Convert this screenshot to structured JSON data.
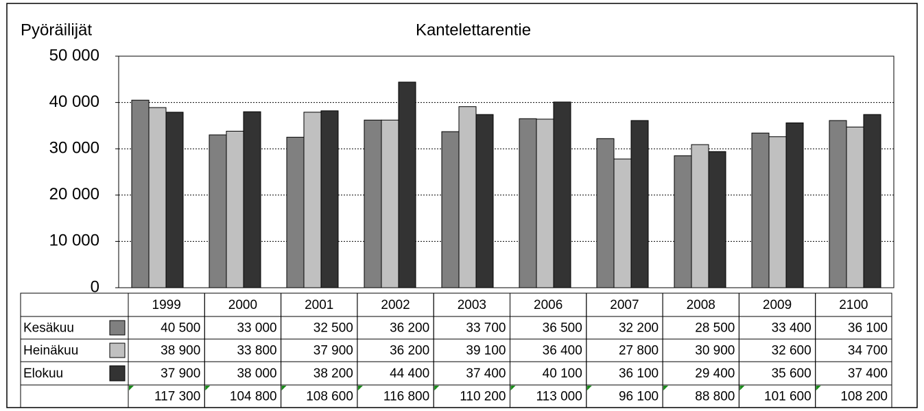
{
  "chart_data": {
    "type": "bar",
    "title": "Kantelettarentie",
    "y_label": "Pyöräilijät",
    "categories": [
      "1999",
      "2000",
      "2001",
      "2002",
      "2003",
      "2006",
      "2007",
      "2008",
      "2009",
      "2100"
    ],
    "series": [
      {
        "name": "Kesäkuu",
        "color": "#808080",
        "values": [
          40500,
          33000,
          32500,
          36200,
          33700,
          36500,
          32200,
          28500,
          33400,
          36100
        ],
        "value_labels": [
          "40 500",
          "33 000",
          "32 500",
          "36 200",
          "33 700",
          "36 500",
          "32 200",
          "28 500",
          "33 400",
          "36 100"
        ]
      },
      {
        "name": "Heinäkuu",
        "color": "#c0c0c0",
        "values": [
          38900,
          33800,
          37900,
          36200,
          39100,
          36400,
          27800,
          30900,
          32600,
          34700
        ],
        "value_labels": [
          "38 900",
          "33 800",
          "37 900",
          "36 200",
          "39 100",
          "36 400",
          "27 800",
          "30 900",
          "32 600",
          "34 700"
        ]
      },
      {
        "name": "Elokuu",
        "color": "#333333",
        "values": [
          37900,
          38000,
          38200,
          44400,
          37400,
          40100,
          36100,
          29400,
          35600,
          37400
        ],
        "value_labels": [
          "37 900",
          "38 000",
          "38 200",
          "44 400",
          "37 400",
          "40 100",
          "36 100",
          "29 400",
          "35 600",
          "37 400"
        ]
      }
    ],
    "totals": [
      117300,
      104800,
      108600,
      116800,
      110200,
      113000,
      96100,
      88800,
      101600,
      108200
    ],
    "totals_labels": [
      "117 300",
      "104 800",
      "108 600",
      "116 800",
      "110 200",
      "113 000",
      "96 100",
      "88 800",
      "101 600",
      "108 200"
    ],
    "ylim": [
      0,
      50000
    ],
    "yticks": [
      0,
      {
        "value": 10000,
        "label": "10 000"
      },
      {
        "value": 20000,
        "label": "20 000"
      },
      {
        "value": 30000,
        "label": "30 000"
      },
      {
        "value": 40000,
        "label": "40 000"
      },
      {
        "value": 50000,
        "label": "50 000"
      }
    ],
    "grid": true
  }
}
